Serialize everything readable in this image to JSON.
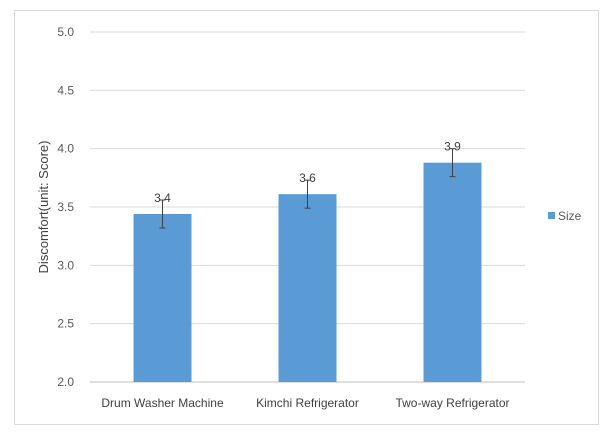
{
  "chart_data": {
    "type": "bar",
    "title": "",
    "xlabel": "",
    "ylabel": "Discomfort(unit: Score)",
    "categories": [
      "Drum Washer Machine",
      "Kimchi Refrigerator",
      "Two-way Refrigerator"
    ],
    "series": [
      {
        "name": "Size",
        "color": "#5b9bd5",
        "values": [
          3.44,
          3.61,
          3.88
        ],
        "error": [
          0.12,
          0.12,
          0.12
        ],
        "data_labels": [
          "3.4",
          "3.6",
          "3.9"
        ]
      }
    ],
    "ylim": [
      2.0,
      5.0
    ],
    "yticks": [
      "2.0",
      "2.5",
      "3.0",
      "3.5",
      "4.0",
      "4.5",
      "5.0"
    ],
    "ytick_values": [
      2.0,
      2.5,
      3.0,
      3.5,
      4.0,
      4.5,
      5.0
    ],
    "grid": true,
    "legend": "right"
  }
}
